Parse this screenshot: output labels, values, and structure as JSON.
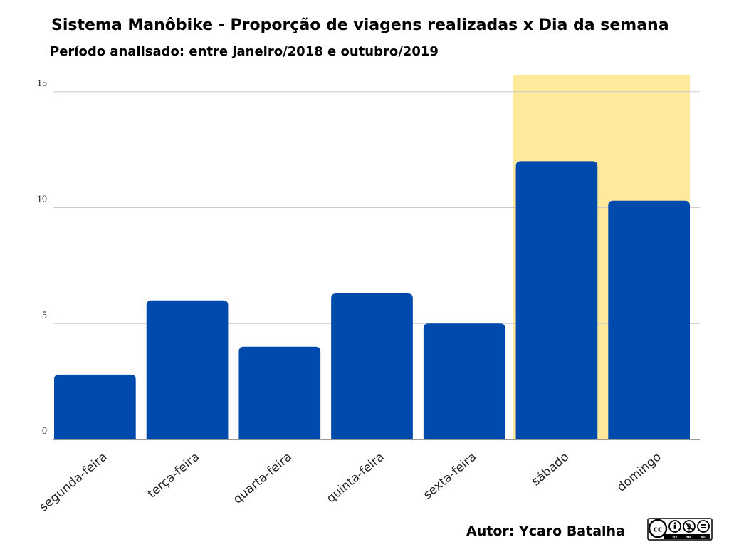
{
  "chart_data": {
    "type": "bar",
    "title": "Sistema Manôbike - Proporção de viagens realizadas x Dia da semana",
    "subtitle": "Período analisado: entre janeiro/2018 e outubro/2019",
    "xlabel": "",
    "ylabel": "",
    "categories": [
      "segunda-feira",
      "terça-feira",
      "quarta-feira",
      "quinta-feira",
      "sexta-feira",
      "sábado",
      "domingo"
    ],
    "values": [
      2.8,
      6.0,
      4.0,
      6.3,
      5.0,
      12.0,
      10.3
    ],
    "ylim": [
      0,
      15.7
    ],
    "yticks": [
      "0",
      "5",
      "10",
      "15"
    ],
    "ytick_values": [
      0,
      5,
      10,
      15
    ],
    "grid": true,
    "highlight_categories": [
      "sábado",
      "domingo"
    ],
    "colors": {
      "bar": "#004aad",
      "highlight": "#ffe99a",
      "grid": "#cccccc",
      "axis": "#999999"
    }
  },
  "footer": {
    "author": "Autor: Ycaro Batalha",
    "license_labels": [
      "BY",
      "NC",
      "ND"
    ]
  }
}
